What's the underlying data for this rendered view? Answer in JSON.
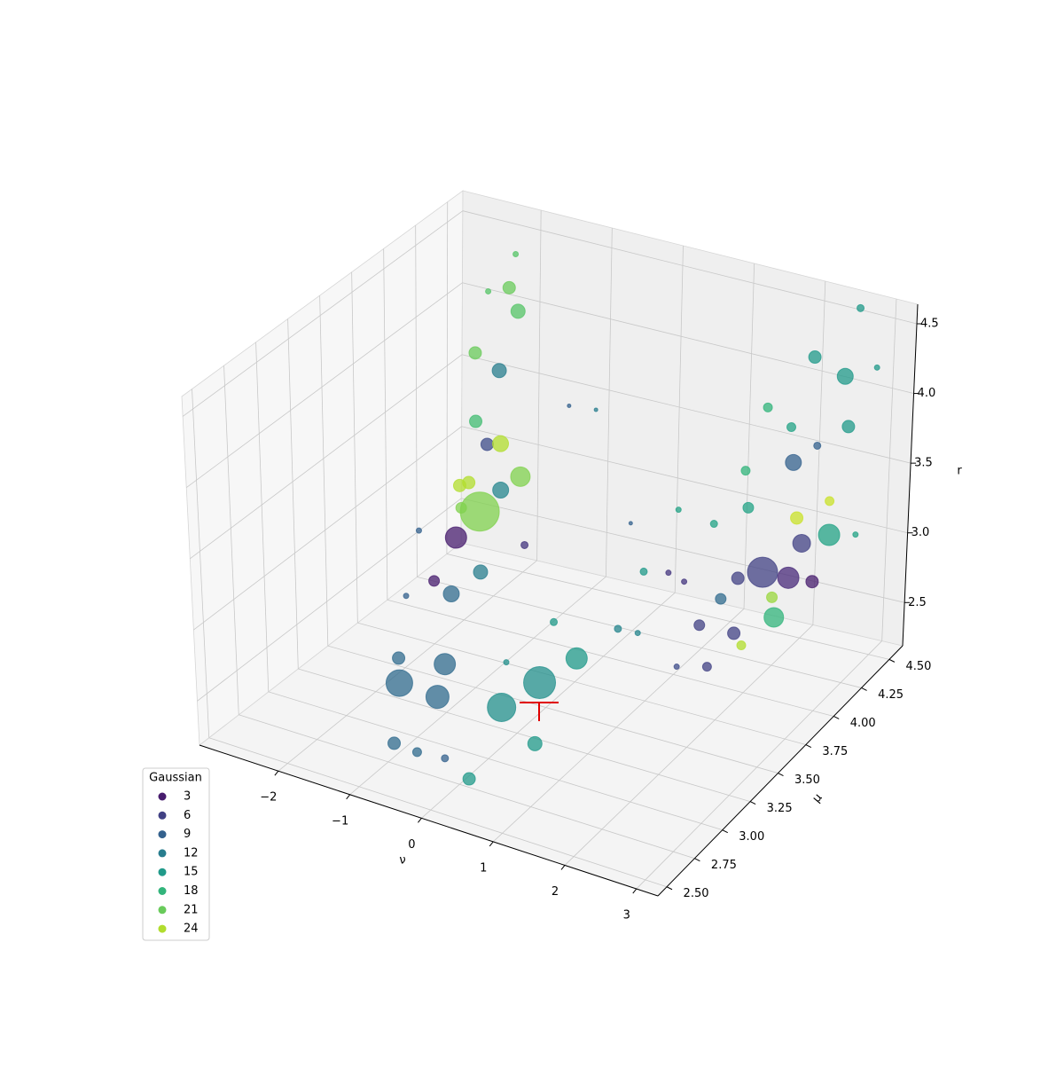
{
  "chart_data": {
    "type": "scatter3d",
    "xlabel": "ν",
    "ylabel": "μ",
    "zlabel": "r",
    "xlim": [
      -3.1,
      3.3
    ],
    "ylim": [
      2.42,
      4.62
    ],
    "zlim": [
      2.19,
      4.64
    ],
    "xticks": [
      {
        "value": -2,
        "label": "−2"
      },
      {
        "value": -1,
        "label": "−1"
      },
      0,
      1,
      2,
      3
    ],
    "yticks": [
      {
        "value": 2.5,
        "label": "2.50"
      },
      2.75,
      {
        "value": 3,
        "label": "3.00"
      },
      3.25,
      {
        "value": 3.5,
        "label": "3.50"
      },
      3.75,
      {
        "value": 4,
        "label": "4.00"
      },
      4.25,
      {
        "value": 4.5,
        "label": "4.50"
      }
    ],
    "zticks": [
      2.5,
      {
        "value": 3,
        "label": "3.0"
      },
      3.5,
      {
        "value": 4,
        "label": "4.0"
      },
      4.5
    ],
    "grid": true,
    "colormap": "viridis",
    "clim": [
      1,
      27
    ],
    "alpha": 0.75,
    "legend_title": "Gaussian",
    "legend_values": [
      3,
      6,
      9,
      12,
      15,
      18,
      21,
      24
    ],
    "legend_loc": "lower left",
    "x": [
      0.22,
      1.18,
      0.82,
      -0.42,
      -0.08,
      -0.15,
      1.15,
      1.46,
      0.63,
      -0.53,
      -0.21,
      0.18,
      -0.8,
      1.96,
      2.15,
      2.36,
      2.31,
      2.15,
      1.82,
      2.51,
      2.58,
      2.26,
      2.69,
      -1.28,
      -0.74,
      -0.83,
      -0.37,
      -0.6,
      -1.4,
      -1.59,
      -1.8,
      -1.73,
      -2.05,
      -2.14,
      -1.75,
      -1.2,
      -1.6,
      -1.28,
      -1.03,
      2.14,
      1.79,
      2.1,
      1.79,
      2.26,
      2.07,
      2.1,
      2.03,
      1.74,
      2.14,
      2.35,
      1.73,
      1.0,
      0.65,
      1.0,
      1.12,
      1.44,
      1.51,
      1.62,
      2.15,
      2.77,
      2.56,
      1.83,
      0.53,
      -1.42,
      -1.24,
      -2.54,
      -2.35,
      -0.5,
      0.63,
      -1.19,
      -0.62,
      1.35,
      1.39,
      1.28
    ],
    "y": [
      2.86,
      2.75,
      2.64,
      2.53,
      2.64,
      2.75,
      3.08,
      2.53,
      2.46,
      2.53,
      2.53,
      2.53,
      2.75,
      4.18,
      4.29,
      4.51,
      4.07,
      4.4,
      4.51,
      4.51,
      4.51,
      4.4,
      4.51,
      3.52,
      3.74,
      3.63,
      3.19,
      3.08,
      3.96,
      3.96,
      4.18,
      4.29,
      4.4,
      4.18,
      3.96,
      3.52,
      3.74,
      3.63,
      3.19,
      4.51,
      4.07,
      3.85,
      3.74,
      3.52,
      4.4,
      4.18,
      3.96,
      4.18,
      4.29,
      4.51,
      3.96,
      3.52,
      3.19,
      3.74,
      3.96,
      4.07,
      4.29,
      4.4,
      4.51,
      4.62,
      4.62,
      3.52,
      2.86,
      3.3,
      3.08,
      4.51,
      4.62,
      3.63,
      3.85,
      4.4,
      4.29,
      3.74,
      3.85,
      3.52
    ],
    "z": [
      4.06,
      3.09,
      2.94,
      2.99,
      2.87,
      3.01,
      3.01,
      2.87,
      2.54,
      2.55,
      2.54,
      2.56,
      2.95,
      2.9,
      2.8,
      2.96,
      2.71,
      2.96,
      3.41,
      4.11,
      3.76,
      4.3,
      4.62,
      3.19,
      3.54,
      3.51,
      3.31,
      3.2,
      3.53,
      3.5,
      3.84,
      4.19,
      4.24,
      3.92,
      3.64,
      3.41,
      3.36,
      3.5,
      3.15,
      2.6,
      2.92,
      2.74,
      2.84,
      2.78,
      3.13,
      2.74,
      2.56,
      3.33,
      3.87,
      3.2,
      2.85,
      2.87,
      3.11,
      3.11,
      3.4,
      3.26,
      3.48,
      3.86,
      3.57,
      4.12,
      2.9,
      2.72,
      3.05,
      3.37,
      3.09,
      4.08,
      4.29,
      3.17,
      3.32,
      3.52,
      3.64,
      3.15,
      3.01,
      2.88
    ],
    "c": [
      22,
      14,
      14,
      10,
      10,
      10,
      15,
      15,
      15,
      10,
      10,
      9,
      10,
      6,
      4,
      16,
      18,
      6,
      9,
      15,
      15,
      15,
      15,
      3,
      22,
      13,
      12,
      10,
      24,
      7,
      12,
      20,
      21,
      21,
      19,
      22,
      24,
      24,
      3,
      3,
      6,
      6,
      6,
      6,
      25,
      23,
      24,
      16,
      16,
      25,
      10,
      13,
      15,
      15,
      16,
      16,
      18,
      18,
      9,
      15,
      16,
      7,
      14,
      9,
      9,
      20,
      20,
      5,
      9,
      9,
      12,
      5,
      5,
      13
    ],
    "s": [
      484,
      324,
      256,
      225,
      169,
      144,
      144,
      64,
      49,
      49,
      25,
      16,
      49,
      289,
      144,
      144,
      121,
      100,
      81,
      81,
      49,
      49,
      16,
      144,
      121,
      81,
      64,
      81,
      81,
      49,
      64,
      64,
      49,
      49,
      49,
      36,
      49,
      49,
      36,
      49,
      49,
      49,
      36,
      25,
      49,
      36,
      25,
      36,
      25,
      25,
      36,
      16,
      16,
      16,
      9,
      16,
      25,
      25,
      16,
      9,
      9,
      9,
      9,
      9,
      9,
      9,
      9,
      16,
      4,
      4,
      4,
      9,
      9,
      9
    ]
  }
}
